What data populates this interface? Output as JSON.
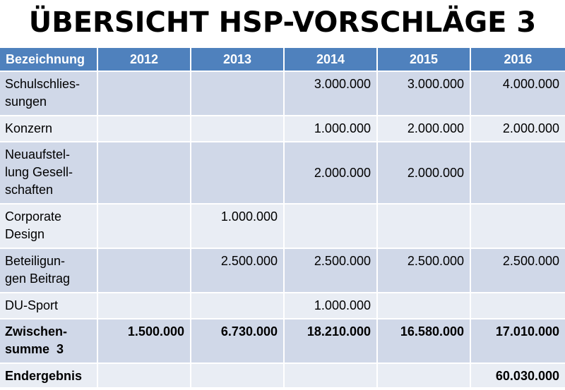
{
  "title": "ÜBERSICHT HSP-VORSCHLÄGE 3",
  "colors": {
    "header_bg": "#4f81bd",
    "row_dark": "#d0d8e8",
    "row_light": "#e9edf4",
    "header_text": "#ffffff"
  },
  "table": {
    "headers": [
      "Bezeichnung",
      "2012",
      "2013",
      "2014",
      "2015",
      "2016"
    ],
    "rows": [
      {
        "label": "Schulschlies-\nsungen",
        "values": [
          "",
          "",
          "3.000.000",
          "3.000.000",
          "4.000.000"
        ]
      },
      {
        "label": "Konzern",
        "values": [
          "",
          "",
          "1.000.000",
          "2.000.000",
          "2.000.000"
        ]
      },
      {
        "label": "Neuaufstel-\nlung Gesell-\nschaften",
        "values": [
          "",
          "",
          "2.000.000",
          "2.000.000",
          ""
        ]
      },
      {
        "label": "Corporate\nDesign",
        "values": [
          "",
          "1.000.000",
          "",
          "",
          ""
        ]
      },
      {
        "label": "Beteiligun-\ngen Beitrag",
        "values": [
          "",
          "2.500.000",
          "2.500.000",
          "2.500.000",
          "2.500.000"
        ]
      },
      {
        "label": "DU-Sport",
        "values": [
          "",
          "",
          "1.000.000",
          "",
          ""
        ]
      },
      {
        "label": "Zwischen-\nsumme  3",
        "values": [
          "1.500.000",
          "6.730.000",
          "18.210.000",
          "16.580.000",
          "17.010.000"
        ]
      },
      {
        "label": "Endergebnis",
        "values": [
          "",
          "",
          "",
          "",
          "60.030.000"
        ]
      }
    ]
  }
}
